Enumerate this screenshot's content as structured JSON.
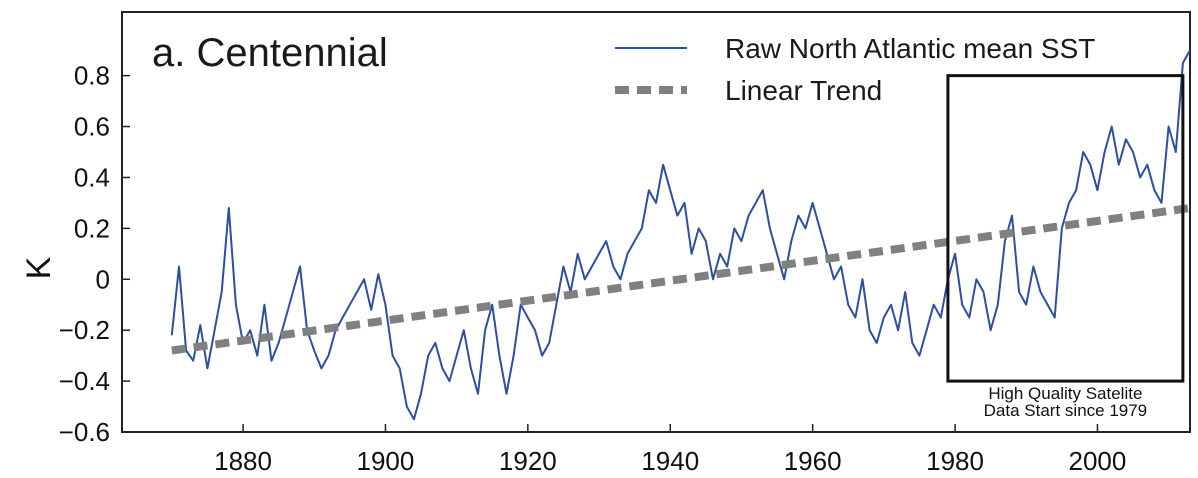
{
  "chart_data": {
    "type": "line",
    "title": "a. Centennial",
    "ylabel": "K",
    "xlabel": "",
    "xlim": [
      1863,
      2013
    ],
    "ylim": [
      -0.6,
      1.05
    ],
    "grid": false,
    "legend_position": "top-right",
    "xticks": [
      1880,
      1900,
      1920,
      1940,
      1960,
      1980,
      2000
    ],
    "xtick_labels": [
      "1880",
      "1900",
      "1920",
      "1940",
      "1960",
      "1980",
      "2000"
    ],
    "yticks": [
      -0.6,
      -0.4,
      -0.2,
      0,
      0.2,
      0.4,
      0.6,
      0.8
    ],
    "ytick_labels": [
      "−0.6",
      "−0.4",
      "−0.2",
      "0",
      "0.2",
      "0.4",
      "0.6",
      "0.8"
    ],
    "series": [
      {
        "name": "Raw North Atlantic mean SST",
        "color": "#2e4f9e",
        "style": "solid",
        "x": [
          1870,
          1871,
          1872,
          1873,
          1874,
          1875,
          1876,
          1877,
          1878,
          1879,
          1880,
          1881,
          1882,
          1883,
          1884,
          1885,
          1886,
          1887,
          1888,
          1889,
          1890,
          1891,
          1892,
          1893,
          1894,
          1895,
          1896,
          1897,
          1898,
          1899,
          1900,
          1901,
          1902,
          1903,
          1904,
          1905,
          1906,
          1907,
          1908,
          1909,
          1910,
          1911,
          1912,
          1913,
          1914,
          1915,
          1916,
          1917,
          1918,
          1919,
          1920,
          1921,
          1922,
          1923,
          1924,
          1925,
          1926,
          1927,
          1928,
          1929,
          1930,
          1931,
          1932,
          1933,
          1934,
          1935,
          1936,
          1937,
          1938,
          1939,
          1940,
          1941,
          1942,
          1943,
          1944,
          1945,
          1946,
          1947,
          1948,
          1949,
          1950,
          1951,
          1952,
          1953,
          1954,
          1955,
          1956,
          1957,
          1958,
          1959,
          1960,
          1961,
          1962,
          1963,
          1964,
          1965,
          1966,
          1967,
          1968,
          1969,
          1970,
          1971,
          1972,
          1973,
          1974,
          1975,
          1976,
          1977,
          1978,
          1979,
          1980,
          1981,
          1982,
          1983,
          1984,
          1985,
          1986,
          1987,
          1988,
          1989,
          1990,
          1991,
          1992,
          1993,
          1994,
          1995,
          1996,
          1997,
          1998,
          1999,
          2000,
          2001,
          2002,
          2003,
          2004,
          2005,
          2006,
          2007,
          2008,
          2009,
          2010,
          2011,
          2012,
          2013
        ],
        "values": [
          -0.22,
          0.05,
          -0.28,
          -0.32,
          -0.18,
          -0.35,
          -0.2,
          -0.05,
          0.28,
          -0.1,
          -0.25,
          -0.2,
          -0.3,
          -0.1,
          -0.32,
          -0.25,
          -0.15,
          -0.05,
          0.05,
          -0.2,
          -0.28,
          -0.35,
          -0.3,
          -0.2,
          -0.15,
          -0.1,
          -0.05,
          0.0,
          -0.12,
          0.02,
          -0.1,
          -0.3,
          -0.35,
          -0.5,
          -0.55,
          -0.45,
          -0.3,
          -0.25,
          -0.35,
          -0.4,
          -0.3,
          -0.2,
          -0.35,
          -0.45,
          -0.2,
          -0.1,
          -0.3,
          -0.45,
          -0.3,
          -0.1,
          -0.15,
          -0.2,
          -0.3,
          -0.25,
          -0.1,
          0.05,
          -0.05,
          0.1,
          0.0,
          0.05,
          0.1,
          0.15,
          0.05,
          0.0,
          0.1,
          0.15,
          0.2,
          0.35,
          0.3,
          0.45,
          0.35,
          0.25,
          0.3,
          0.1,
          0.2,
          0.15,
          0.0,
          0.1,
          0.05,
          0.2,
          0.15,
          0.25,
          0.3,
          0.35,
          0.2,
          0.1,
          0.0,
          0.15,
          0.25,
          0.2,
          0.3,
          0.2,
          0.1,
          0.0,
          0.05,
          -0.1,
          -0.15,
          0.0,
          -0.2,
          -0.25,
          -0.15,
          -0.1,
          -0.2,
          -0.05,
          -0.25,
          -0.3,
          -0.2,
          -0.1,
          -0.15,
          0.0,
          0.1,
          -0.1,
          -0.15,
          0.0,
          -0.05,
          -0.2,
          -0.1,
          0.15,
          0.25,
          -0.05,
          -0.1,
          0.05,
          -0.05,
          -0.1,
          -0.15,
          0.2,
          0.3,
          0.35,
          0.5,
          0.45,
          0.35,
          0.5,
          0.6,
          0.45,
          0.55,
          0.5,
          0.4,
          0.45,
          0.35,
          0.3,
          0.6,
          0.5,
          0.85,
          0.9
        ]
      },
      {
        "name": "Linear Trend",
        "color": "#808080",
        "style": "dashed",
        "x": [
          1870,
          2013
        ],
        "values": [
          -0.28,
          0.28
        ]
      }
    ],
    "annotation": {
      "box_x": [
        1979,
        2012
      ],
      "box_y": [
        -0.4,
        0.8
      ],
      "text_lines": [
        "High Quality Satelite",
        "Data Start since 1979"
      ]
    }
  }
}
